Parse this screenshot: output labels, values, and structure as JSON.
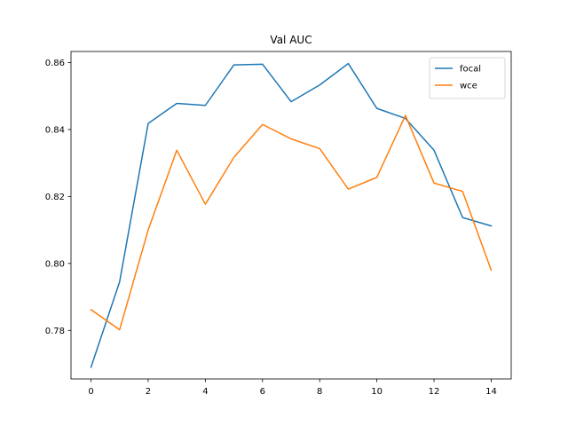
{
  "chart_data": {
    "type": "line",
    "title": "Val AUC",
    "xlabel": "",
    "ylabel": "",
    "x": [
      0,
      1,
      2,
      3,
      4,
      5,
      6,
      7,
      8,
      9,
      10,
      11,
      12,
      13,
      14
    ],
    "xlim": [
      -0.7,
      14.7
    ],
    "ylim": [
      0.7655,
      0.8633
    ],
    "xticks": [
      0,
      2,
      4,
      6,
      8,
      10,
      12,
      14
    ],
    "yticks": [
      0.78,
      0.8,
      0.82,
      0.84,
      0.86
    ],
    "ytick_labels": [
      "0.78",
      "0.80",
      "0.82",
      "0.84",
      "0.86"
    ],
    "grid": false,
    "legend_position": "top-right",
    "series": [
      {
        "name": "focal",
        "color": "#1f77b4",
        "values": [
          0.769,
          0.7945,
          0.8418,
          0.8478,
          0.8472,
          0.8593,
          0.8595,
          0.8483,
          0.8533,
          0.8597,
          0.8463,
          0.8433,
          0.8338,
          0.8137,
          0.8112
        ]
      },
      {
        "name": "wce",
        "color": "#ff7f0e",
        "values": [
          0.7862,
          0.7802,
          0.81,
          0.8338,
          0.8177,
          0.8317,
          0.8415,
          0.8372,
          0.8343,
          0.8222,
          0.8257,
          0.8442,
          0.824,
          0.8215,
          0.798
        ]
      }
    ]
  }
}
